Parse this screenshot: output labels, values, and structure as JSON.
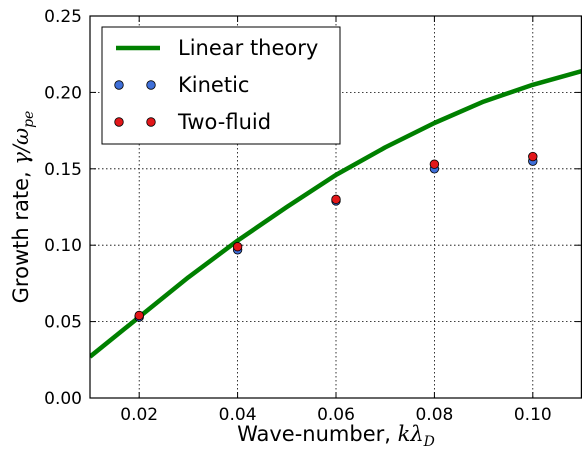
{
  "chart_data": {
    "type": "line",
    "xlabel": "Wave-number, kλD",
    "xlabel_parts": {
      "text": "Wave-number, ",
      "math_main": "kλ",
      "math_sub": "D"
    },
    "ylabel": "Growth rate, γ/ωpe",
    "ylabel_parts": {
      "text": "Growth rate, ",
      "math_main": "γ/ω",
      "math_sub": "pe"
    },
    "xlim": [
      0.01,
      0.11
    ],
    "ylim": [
      0.0,
      0.25
    ],
    "xticks": [
      0.02,
      0.04,
      0.06,
      0.08,
      0.1
    ],
    "xtick_labels": [
      "0.02",
      "0.04",
      "0.06",
      "0.08",
      "0.10"
    ],
    "yticks": [
      0.0,
      0.05,
      0.1,
      0.15,
      0.2,
      0.25
    ],
    "ytick_labels": [
      "0.00",
      "0.05",
      "0.10",
      "0.15",
      "0.20",
      "0.25"
    ],
    "grid": true,
    "legend_position": "top-left",
    "series": [
      {
        "name": "Linear theory",
        "kind": "line",
        "color": "#008000",
        "x": [
          0.01,
          0.02,
          0.03,
          0.04,
          0.05,
          0.06,
          0.07,
          0.08,
          0.09,
          0.1,
          0.11
        ],
        "y": [
          0.027,
          0.053,
          0.079,
          0.103,
          0.125,
          0.146,
          0.164,
          0.18,
          0.194,
          0.205,
          0.214
        ]
      },
      {
        "name": "Kinetic",
        "kind": "scatter",
        "color": "#3f6fd8",
        "x": [
          0.02,
          0.04,
          0.06,
          0.08,
          0.1
        ],
        "y": [
          0.053,
          0.097,
          0.129,
          0.15,
          0.155
        ]
      },
      {
        "name": "Two-fluid",
        "kind": "scatter",
        "color": "#e2171a",
        "x": [
          0.02,
          0.04,
          0.06,
          0.08,
          0.1
        ],
        "y": [
          0.054,
          0.099,
          0.13,
          0.153,
          0.158
        ]
      }
    ]
  }
}
